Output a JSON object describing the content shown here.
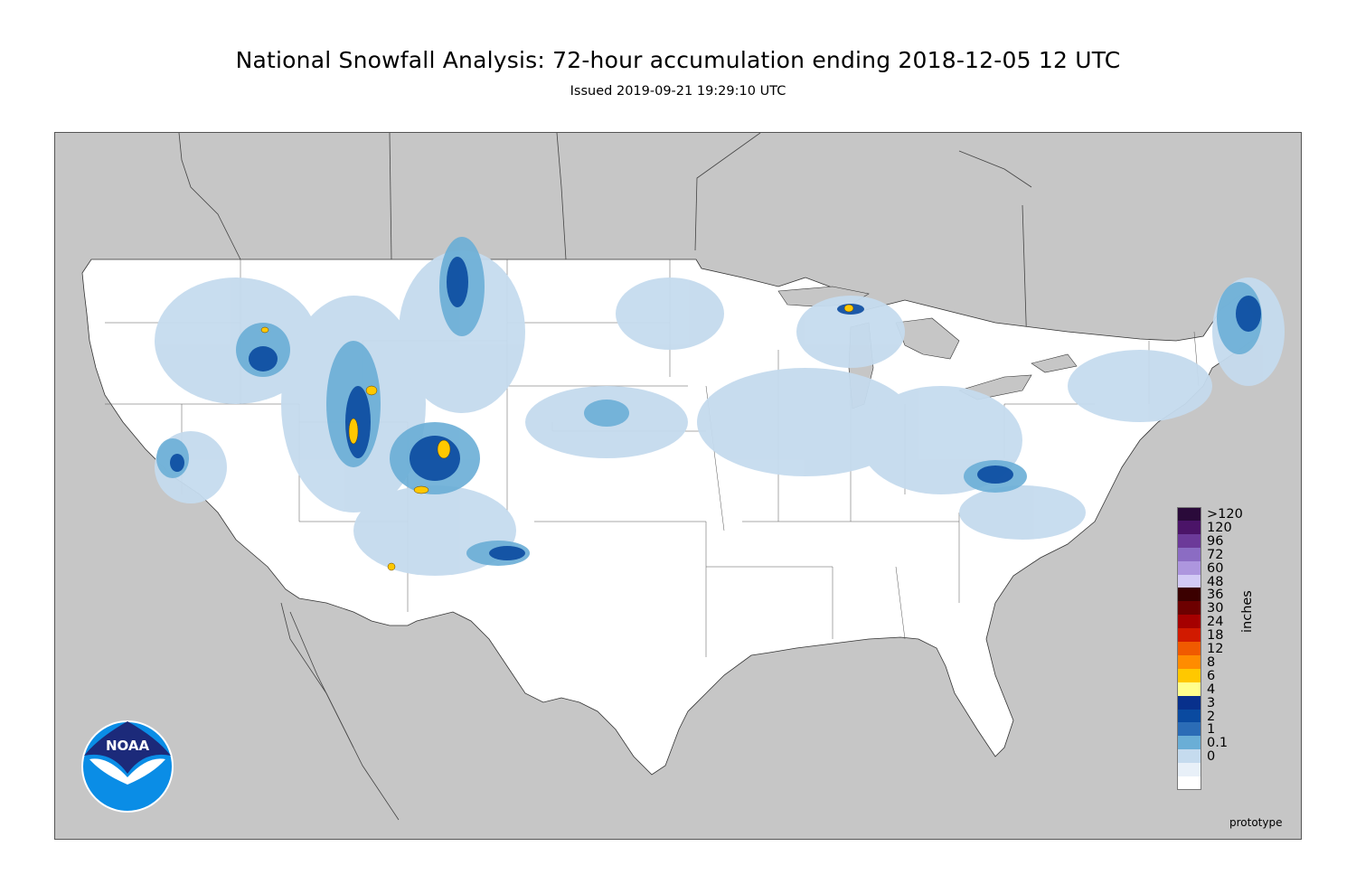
{
  "header": {
    "title": "National Snowfall Analysis: 72-hour accumulation ending 2018-12-05 12 UTC",
    "issued": "Issued 2019-09-21 19:29:10 UTC"
  },
  "legend": {
    "units": "inches",
    "levels": [
      {
        "label": ">120",
        "color": "#2a0a3a"
      },
      {
        "label": "120",
        "color": "#4b1468"
      },
      {
        "label": "96",
        "color": "#6c3a99"
      },
      {
        "label": "72",
        "color": "#8b6cc3"
      },
      {
        "label": "60",
        "color": "#ad96de"
      },
      {
        "label": "48",
        "color": "#d2caf5"
      },
      {
        "label": "36",
        "color": "#3b0000"
      },
      {
        "label": "30",
        "color": "#6d0000"
      },
      {
        "label": "24",
        "color": "#a50000"
      },
      {
        "label": "18",
        "color": "#d11a00"
      },
      {
        "label": "12",
        "color": "#f05a00"
      },
      {
        "label": "8",
        "color": "#ff8c00"
      },
      {
        "label": "6",
        "color": "#ffc800"
      },
      {
        "label": "4",
        "color": "#ffff8c"
      },
      {
        "label": "3",
        "color": "#08308c"
      },
      {
        "label": "2",
        "color": "#0a4aa0"
      },
      {
        "label": "1",
        "color": "#2b6cb6"
      },
      {
        "label": "0.1",
        "color": "#6aaed6"
      },
      {
        "label": "0",
        "color": "#c5dbee"
      }
    ],
    "bottom_swatches": [
      "#e8f0f8",
      "#ffffff"
    ]
  },
  "footer": {
    "prototype": "prototype",
    "logo_text": "NOAA"
  },
  "colors": {
    "ocean_land_outside": "#c6c6c6",
    "conus_background": "#ffffff",
    "snow_light": "#c5dbee",
    "snow_mid": "#6aaed6",
    "snow_heavy": "#0a4aa0",
    "snow_extreme": "#ffc800"
  }
}
